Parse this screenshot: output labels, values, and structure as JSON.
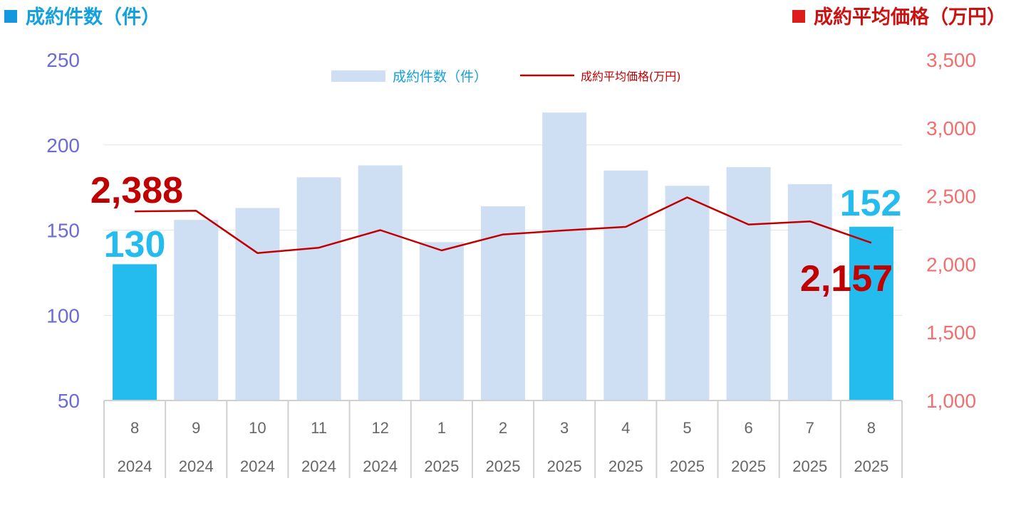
{
  "header": {
    "left_title": "成約件数（件）",
    "right_title": "成約平均価格（万円）"
  },
  "colors": {
    "bar": "#cfdff3",
    "bar_highlight": "#24bcee",
    "line": "#c00000",
    "left_axis": "#6b6bd6",
    "right_axis": "#f26f6f",
    "left_title": "#14a0dd",
    "right_title": "#cc1111",
    "left_square": "#1398dd",
    "right_square": "#dd1c1c"
  },
  "chart_data": {
    "type": "bar",
    "categories": [
      "8",
      "9",
      "10",
      "11",
      "12",
      "1",
      "2",
      "3",
      "4",
      "5",
      "6",
      "7",
      "8"
    ],
    "years": [
      "2024",
      "2024",
      "2024",
      "2024",
      "2024",
      "2025",
      "2025",
      "2025",
      "2025",
      "2025",
      "2025",
      "2025",
      "2025"
    ],
    "series": [
      {
        "name": "成約件数（件）",
        "type": "bar",
        "axis": "left",
        "values": [
          130,
          156,
          163,
          181,
          188,
          143,
          164,
          219,
          185,
          176,
          187,
          177,
          152
        ],
        "highlight_indices": [
          0,
          12
        ]
      },
      {
        "name": "成約平均価格(万円)",
        "type": "line",
        "axis": "right",
        "values": [
          2388,
          2392,
          2082,
          2121,
          2250,
          2101,
          2218,
          2248,
          2274,
          2490,
          2291,
          2314,
          2157
        ]
      }
    ],
    "left_axis": {
      "min": 50,
      "max": 250,
      "ticks": [
        "250",
        "200",
        "150",
        "100",
        "50"
      ]
    },
    "right_axis": {
      "min": 1000,
      "max": 3500,
      "ticks": [
        "3,500",
        "3,000",
        "2,500",
        "2,000",
        "1,500",
        "1,000"
      ]
    },
    "grid": true,
    "legend_position": "top-center",
    "annotations": [
      {
        "text": "130",
        "series": "bar",
        "index": 0
      },
      {
        "text": "152",
        "series": "bar",
        "index": 12
      },
      {
        "text": "2,388",
        "series": "line",
        "index": 0
      },
      {
        "text": "2,157",
        "series": "line",
        "index": 12
      }
    ]
  }
}
